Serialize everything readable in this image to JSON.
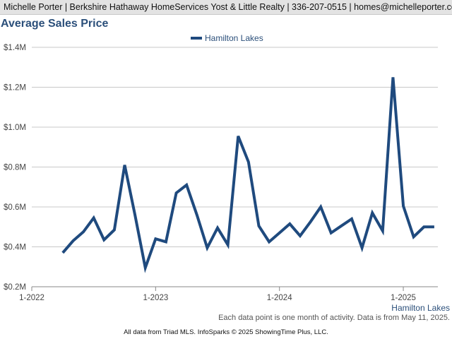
{
  "header": {
    "text": "Michelle Porter | Berkshire Hathaway HomeServices Yost & Little Realty | 336-207-0515 | homes@michelleporter.com"
  },
  "chart_data": {
    "type": "line",
    "title": "Average Sales Price",
    "xlabel": "",
    "ylabel": "",
    "x_ticks": [
      "1-2022",
      "1-2023",
      "1-2024",
      "1-2025"
    ],
    "y_ticks": [
      "$0.2M",
      "$0.4M",
      "$0.6M",
      "$0.8M",
      "$1.0M",
      "$1.2M",
      "$1.4M"
    ],
    "ylim": [
      200000,
      1400000
    ],
    "xlim": [
      "2022-01",
      "2025-04"
    ],
    "grid": true,
    "legend": "top-center",
    "series_label_bottom_right": "Hamilton Lakes",
    "x": [
      "2022-04",
      "2022-05",
      "2022-06",
      "2022-07",
      "2022-08",
      "2022-09",
      "2022-10",
      "2022-11",
      "2022-12",
      "2023-01",
      "2023-02",
      "2023-03",
      "2023-04",
      "2023-05",
      "2023-06",
      "2023-07",
      "2023-08",
      "2023-09",
      "2023-10",
      "2023-11",
      "2023-12",
      "2024-01",
      "2024-02",
      "2024-03",
      "2024-04",
      "2024-05",
      "2024-06",
      "2024-07",
      "2024-08",
      "2024-09",
      "2024-10",
      "2024-11",
      "2024-12",
      "2025-01",
      "2025-02",
      "2025-03",
      "2025-04"
    ],
    "series": [
      {
        "name": "Hamilton Lakes",
        "color": "#1f4a7e",
        "values": [
          370000,
          430000,
          475000,
          545000,
          435000,
          485000,
          810000,
          560000,
          295000,
          440000,
          425000,
          670000,
          710000,
          560000,
          395000,
          495000,
          410000,
          955000,
          825000,
          505000,
          425000,
          470000,
          515000,
          455000,
          525000,
          600000,
          470000,
          505000,
          540000,
          395000,
          570000,
          480000,
          1250000,
          605000,
          450000,
          500000,
          500000
        ]
      }
    ]
  },
  "footnote": "Each data point is one month of activity. Data is from May 11, 2025.",
  "source": "All data from Triad MLS. InfoSparks © 2025 ShowingTime Plus, LLC."
}
